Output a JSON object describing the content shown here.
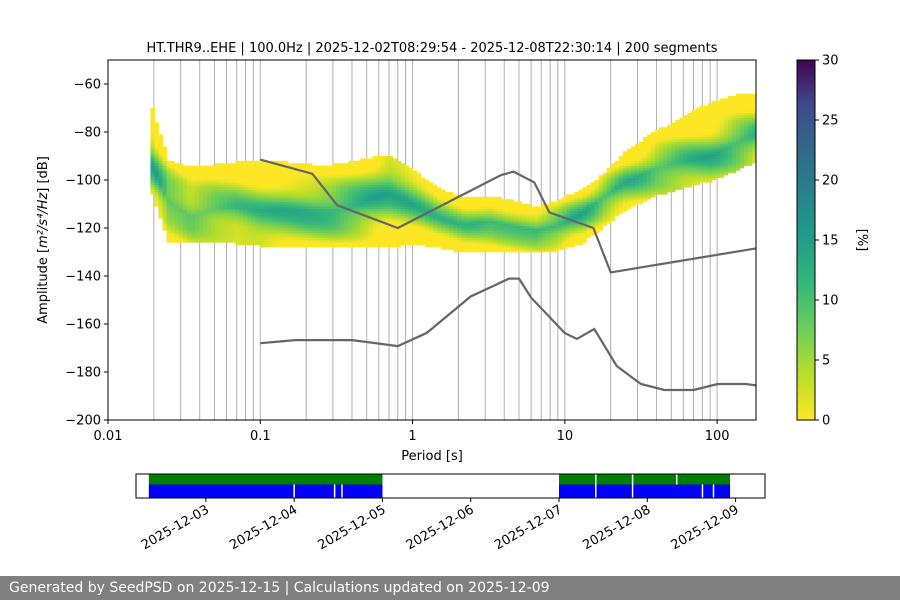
{
  "chart_data": {
    "type": "heatmap",
    "title": "HT.THR9..EHE | 100.0Hz | 2025-12-02T08:29:54 - 2025-12-08T22:30:14 | 200 segments",
    "xlabel": "Period [s]",
    "ylabel_main": "Amplitude [",
    "ylabel_unit": "m²/s⁴/Hz",
    "ylabel_tail": "] [dB]",
    "x_scale": "log",
    "xlim": [
      0.01,
      180
    ],
    "ylim": [
      -200,
      -50
    ],
    "x_ticks": [
      {
        "v": 0.01,
        "label": "0.01"
      },
      {
        "v": 0.1,
        "label": "0.1"
      },
      {
        "v": 1,
        "label": "1"
      },
      {
        "v": 10,
        "label": "10"
      },
      {
        "v": 100,
        "label": "100"
      }
    ],
    "y_ticks": [
      {
        "v": -60,
        "label": "−60"
      },
      {
        "v": -80,
        "label": "−80"
      },
      {
        "v": -100,
        "label": "−100"
      },
      {
        "v": -120,
        "label": "−120"
      },
      {
        "v": -140,
        "label": "−140"
      },
      {
        "v": -160,
        "label": "−160"
      },
      {
        "v": -180,
        "label": "−180"
      },
      {
        "v": -200,
        "label": "−200"
      }
    ],
    "grid": "vertical minor log gridlines",
    "colorbar": {
      "label": "[%]",
      "min": 0,
      "max": 30,
      "ticks": [
        {
          "v": 0,
          "label": "0"
        },
        {
          "v": 5,
          "label": "5"
        },
        {
          "v": 10,
          "label": "10"
        },
        {
          "v": 15,
          "label": "15"
        },
        {
          "v": 20,
          "label": "20"
        },
        {
          "v": 25,
          "label": "25"
        },
        {
          "v": 30,
          "label": "30"
        }
      ]
    },
    "psd_envelope": {
      "period": [
        0.019,
        0.025,
        0.035,
        0.05,
        0.07,
        0.1,
        0.15,
        0.22,
        0.3,
        0.45,
        0.7,
        1.0,
        1.5,
        2.2,
        3.2,
        4.5,
        6.5,
        9,
        13,
        18,
        25,
        40,
        60,
        90,
        130,
        180
      ],
      "center": [
        -92,
        -109,
        -115,
        -112,
        -111,
        -113,
        -112,
        -113,
        -113,
        -110,
        -105,
        -110,
        -116,
        -119,
        -117,
        -119,
        -121,
        -119,
        -114,
        -107,
        -101,
        -95,
        -92,
        -90,
        -85,
        -81
      ],
      "lower": [
        -103,
        -125,
        -126,
        -126,
        -126,
        -127,
        -128,
        -128,
        -128,
        -128,
        -128,
        -126,
        -128,
        -130,
        -130,
        -129,
        -130,
        -129,
        -126,
        -119,
        -112,
        -106,
        -103,
        -100,
        -96,
        -92
      ],
      "upper": [
        -68,
        -92,
        -95,
        -94,
        -93,
        -92,
        -93,
        -94,
        -94,
        -92,
        -90,
        -96,
        -104,
        -108,
        -107,
        -109,
        -112,
        -109,
        -104,
        -98,
        -88,
        -80,
        -74,
        -68,
        -65,
        -64
      ]
    },
    "series": [
      {
        "name": "NHNM",
        "x": [
          0.1,
          0.22,
          0.32,
          0.8,
          3.8,
          4.6,
          6.3,
          7.9,
          15.4,
          20,
          180
        ],
        "y": [
          -91.5,
          -97.4,
          -110.5,
          -120,
          -98,
          -96.5,
          -101,
          -113.5,
          -120,
          -138.5,
          -128.5
        ]
      },
      {
        "name": "NLNM",
        "x": [
          0.1,
          0.17,
          0.4,
          0.8,
          1.24,
          2.4,
          4.3,
          5.0,
          6.0,
          10,
          12,
          15.6,
          21.9,
          31.6,
          45,
          70,
          101,
          154,
          180
        ],
        "y": [
          -168,
          -166.7,
          -166.7,
          -169.2,
          -163.7,
          -148.6,
          -141.1,
          -141.1,
          -149,
          -163.8,
          -166.2,
          -162.1,
          -177.5,
          -185,
          -187.5,
          -187.5,
          -185,
          -185,
          -185.6
        ]
      }
    ]
  },
  "timeline": {
    "dates": [
      "2025-12-03",
      "2025-12-04",
      "2025-12-05",
      "2025-12-06",
      "2025-12-07",
      "2025-12-08",
      "2025-12-09"
    ],
    "range_start": "2025-12-02T05:00",
    "range_end": "2025-12-09T08:00",
    "green_spans": [
      [
        "2025-12-02T08:29",
        "2025-12-05T00:00"
      ],
      [
        "2025-12-07T00:00",
        "2025-12-08T22:30"
      ]
    ],
    "blue_spans": [
      [
        "2025-12-02T08:29",
        "2025-12-05T00:00"
      ],
      [
        "2025-12-07T00:00",
        "2025-12-08T22:30"
      ]
    ],
    "green_gaps": [
      "2025-12-07T10:00",
      "2025-12-07T20:00",
      "2025-12-08T08:00"
    ],
    "blue_gaps": [
      "2025-12-04T00:00",
      "2025-12-04T11:00",
      "2025-12-04T13:00",
      "2025-12-07T10:00",
      "2025-12-07T20:00",
      "2025-12-08T15:00",
      "2025-12-08T18:00"
    ]
  },
  "footer": {
    "text": "Generated by SeedPSD on 2025-12-15 | Calculations updated on 2025-12-09"
  },
  "colors": {
    "model_line": "#666666",
    "grid": "#b0b0b0",
    "timeline_green": "#008000",
    "timeline_blue": "#0000ff",
    "footer_bg": "#808080"
  }
}
